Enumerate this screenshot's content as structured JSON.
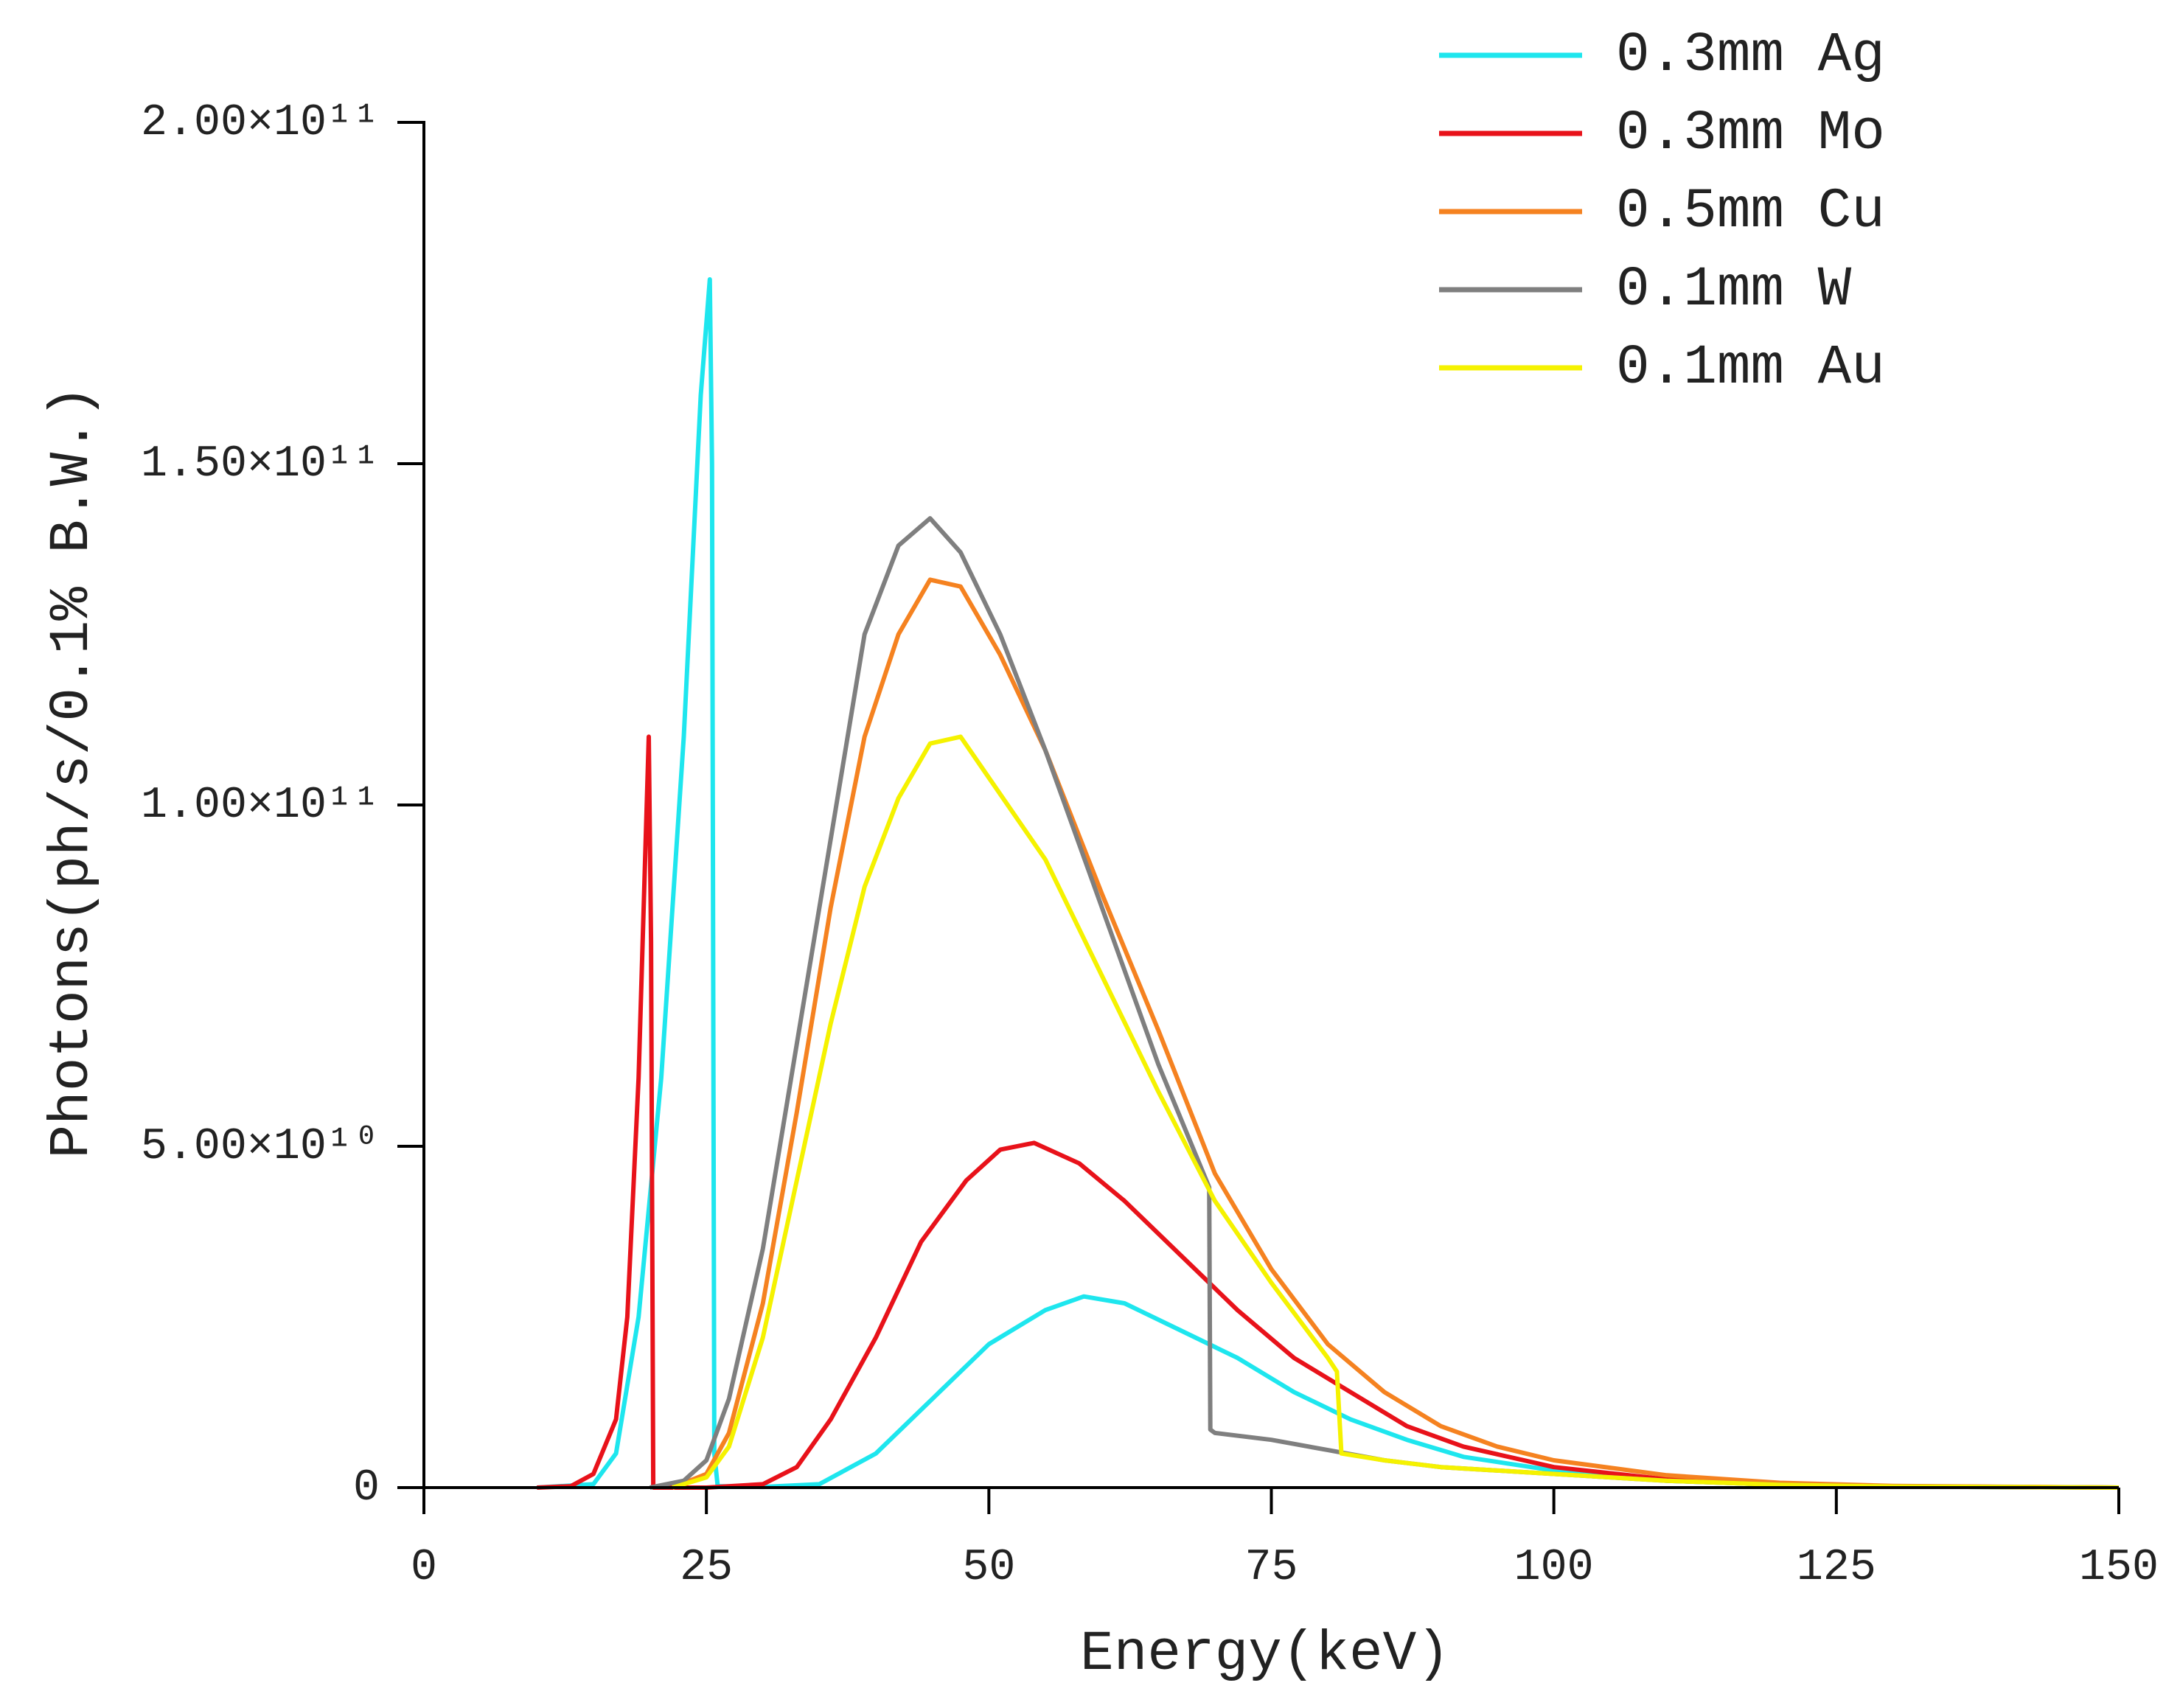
{
  "chart_data": {
    "type": "line",
    "xlabel": "Energy(keV)",
    "ylabel": "Photons(ph/s/0.1% B.W.)",
    "xlim": [
      0,
      150
    ],
    "ylim": [
      0,
      200000000000.0
    ],
    "xticks": [
      0,
      25,
      50,
      75,
      100,
      125,
      150
    ],
    "yticks": [
      0,
      {
        "value": 50000000000.0,
        "label": "5.00×10¹⁰"
      },
      {
        "value": 100000000000.0,
        "label": "1.00×10¹¹"
      },
      {
        "value": 150000000000.0,
        "label": "1.50×10¹¹"
      },
      {
        "value": 200000000000.0,
        "label": "2.00×10¹¹"
      }
    ],
    "grid": false,
    "legend": "upper right",
    "series": [
      {
        "name": "0.3mm Ag",
        "color": "#1ee6ee",
        "x": [
          10,
          15,
          17,
          19,
          21,
          23,
          24.5,
          25.3,
          25.5,
          25.7,
          26,
          30,
          35,
          40,
          45,
          50,
          55,
          58.4,
          62,
          67,
          72,
          77,
          82,
          87,
          92,
          100,
          110,
          120,
          130,
          150
        ],
        "values": [
          0,
          500000000.0,
          5000000000.0,
          25000000000.0,
          60000000000.0,
          110000000000.0,
          160000000000.0,
          177000000000.0,
          150000000000.0,
          5000000000.0,
          200000000.0,
          100000000.0,
          500000000.0,
          5000000000.0,
          13000000000.0,
          21000000000.0,
          26000000000.0,
          28000000000.0,
          27000000000.0,
          23000000000.0,
          19000000000.0,
          14000000000.0,
          10000000000.0,
          7000000000.0,
          4500000000.0,
          2500000000.0,
          1000000000.0,
          400000000.0,
          150000000.0,
          0
        ]
      },
      {
        "name": "0.3mm Mo",
        "color": "#e8121a",
        "x": [
          10,
          13,
          15,
          17,
          18,
          19,
          19.9,
          20.1,
          20.3,
          25,
          30,
          33,
          36,
          40,
          44,
          48,
          51,
          54,
          58,
          62,
          67,
          72,
          77,
          82,
          87,
          92,
          100,
          110,
          120,
          130,
          150
        ],
        "values": [
          0,
          200000000.0,
          2000000000.0,
          10000000000.0,
          25000000000.0,
          60000000000.0,
          110000000000.0,
          80000000000.0,
          0,
          0,
          500000000.0,
          3000000000.0,
          10000000000.0,
          22000000000.0,
          36000000000.0,
          45000000000.0,
          49500000000.0,
          50500000000.0,
          47500000000.0,
          42000000000.0,
          34000000000.0,
          26000000000.0,
          19000000000.0,
          14000000000.0,
          9000000000.0,
          6000000000.0,
          3000000000.0,
          1200000000.0,
          500000000.0,
          200000000.0,
          0
        ]
      },
      {
        "name": "0.5mm Cu",
        "color": "#f58220",
        "x": [
          22,
          25,
          27,
          30,
          33,
          36,
          39,
          42,
          44.8,
          47.5,
          51,
          55,
          60,
          65,
          70,
          75,
          80,
          85,
          90,
          95,
          100,
          110,
          120,
          130,
          150
        ],
        "values": [
          0,
          2000000000.0,
          8000000000.0,
          27000000000.0,
          55000000000.0,
          85000000000.0,
          110000000000.0,
          125000000000.0,
          133000000000.0,
          132000000000.0,
          122000000000.0,
          108000000000.0,
          87000000000.0,
          67000000000.0,
          46000000000.0,
          32000000000.0,
          21000000000.0,
          14000000000.0,
          9000000000.0,
          6000000000.0,
          4000000000.0,
          1800000000.0,
          700000000.0,
          250000000.0,
          0
        ]
      },
      {
        "name": "0.1mm W",
        "color": "#7f7f7f",
        "x": [
          20,
          23,
          25,
          27,
          30,
          33,
          36,
          39,
          42,
          44.8,
          47.5,
          51,
          55,
          60,
          65,
          69.5,
          69.6,
          70,
          75,
          80,
          85,
          90,
          100,
          110,
          120,
          130,
          150
        ],
        "values": [
          0,
          1000000000.0,
          4000000000.0,
          13000000000.0,
          35000000000.0,
          65000000000.0,
          95000000000.0,
          125000000000.0,
          138000000000.0,
          142000000000.0,
          137000000000.0,
          125000000000.0,
          108000000000.0,
          85000000000.0,
          62000000000.0,
          44000000000.0,
          8500000000.0,
          8000000000.0,
          7000000000.0,
          5500000000.0,
          4000000000.0,
          3000000000.0,
          2000000000.0,
          1000000000.0,
          400000000.0,
          150000000.0,
          0
        ]
      },
      {
        "name": "0.1mm Au",
        "color": "#f5f200",
        "x": [
          22,
          25,
          27,
          30,
          33,
          36,
          39,
          42,
          44.8,
          47.5,
          50,
          55,
          60,
          65,
          70,
          75,
          80,
          80.8,
          81.2,
          85,
          90,
          100,
          110,
          120,
          130,
          150
        ],
        "values": [
          0,
          1500000000.0,
          6000000000.0,
          22000000000.0,
          45000000000.0,
          68000000000.0,
          88000000000.0,
          101000000000.0,
          109000000000.0,
          110000000000.0,
          104000000000.0,
          92000000000.0,
          75000000000.0,
          58000000000.0,
          42000000000.0,
          30000000000.0,
          19000000000.0,
          17000000000.0,
          5000000000.0,
          4000000000.0,
          3000000000.0,
          2000000000.0,
          1000000000.0,
          400000000.0,
          150000000.0,
          0
        ]
      }
    ]
  }
}
